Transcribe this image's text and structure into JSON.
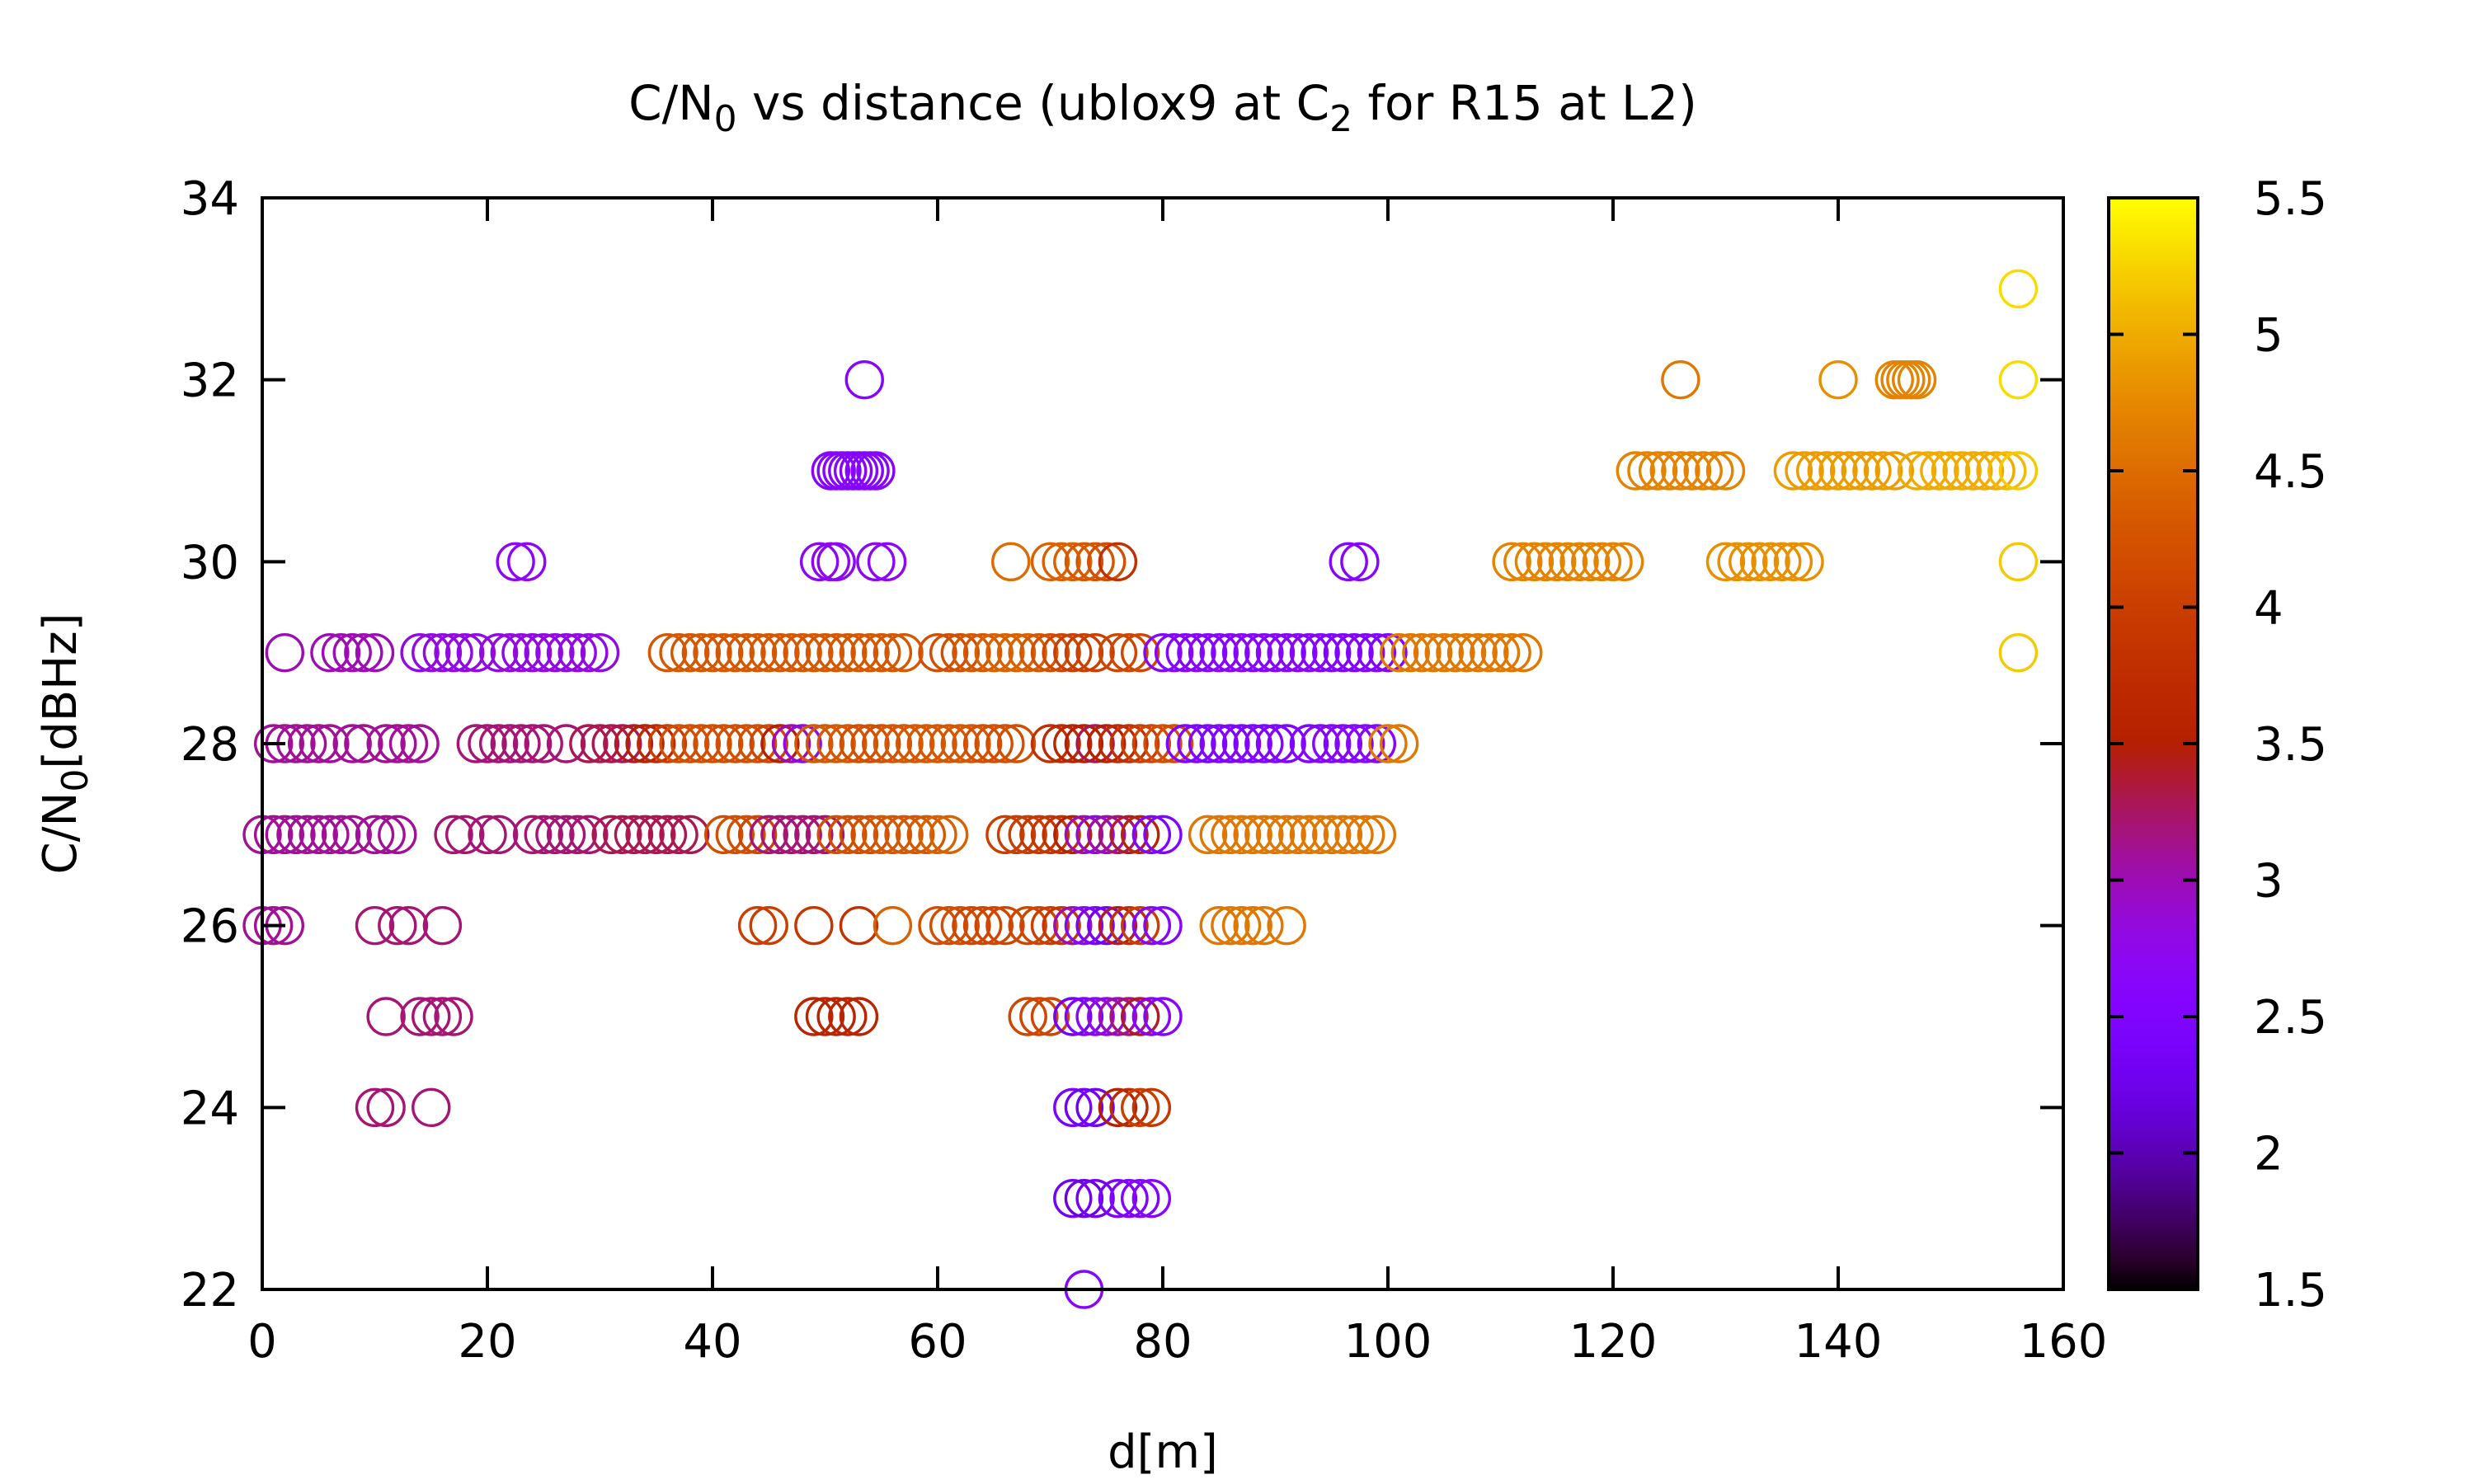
{
  "chart_data": {
    "type": "scatter",
    "title_parts": {
      "a": "C/N",
      "a_sub": "0",
      "b": " vs distance (ublox9 at C",
      "b_sub": "2",
      "c": " for R15 at L2)"
    },
    "xlabel": "d[m]",
    "ylabel_parts": {
      "a": "C/N",
      "a_sub": "0",
      "b": "[dBHz]"
    },
    "xlim": [
      0,
      160
    ],
    "ylim": [
      22,
      34
    ],
    "xticks": [
      "0",
      "20",
      "40",
      "60",
      "80",
      "100",
      "120",
      "140",
      "160"
    ],
    "yticks": [
      "22",
      "24",
      "26",
      "28",
      "30",
      "32",
      "34"
    ],
    "colorbar": {
      "range": [
        1.5,
        5.5
      ],
      "ticks": [
        "1.5",
        "2",
        "2.5",
        "3",
        "3.5",
        "4",
        "4.5",
        "5",
        "5.5"
      ],
      "palette": "gnuplot pm3d default (black-purple-red-orange-yellow)"
    },
    "marker": "open-circle",
    "grid": false,
    "series": [
      {
        "y": 33,
        "x": [
          156
        ],
        "c": [
          5.3
        ]
      },
      {
        "y": 32,
        "x": [
          53.5,
          126,
          140,
          145,
          145.5,
          146,
          146.5,
          147,
          156
        ],
        "c": [
          2.6,
          4.6,
          4.8,
          4.7,
          4.7,
          4.7,
          4.7,
          4.7,
          5.3
        ]
      },
      {
        "y": 31,
        "x": [
          50.5,
          51,
          51.5,
          52,
          52.5,
          53,
          53.5,
          54,
          54.5,
          122,
          123,
          124,
          125,
          126,
          127,
          128,
          129,
          130,
          136,
          137,
          138,
          139,
          140,
          141,
          142,
          143,
          144,
          145,
          147,
          148,
          149,
          150,
          151,
          152,
          153,
          154,
          155,
          156
        ],
        "c": [
          2.6,
          2.6,
          2.6,
          2.6,
          2.6,
          2.6,
          2.6,
          2.6,
          2.6,
          4.7,
          4.7,
          4.7,
          4.7,
          4.7,
          4.7,
          4.7,
          4.7,
          4.7,
          4.9,
          4.9,
          4.9,
          4.9,
          4.9,
          4.9,
          4.9,
          4.9,
          4.9,
          4.9,
          5.0,
          5.0,
          5.0,
          5.0,
          5.0,
          5.0,
          5.0,
          5.0,
          5.1,
          5.2
        ]
      },
      {
        "y": 30,
        "x": [
          22.5,
          23.5,
          49.5,
          50.5,
          51,
          54.5,
          55.5,
          66.5,
          70,
          71,
          72,
          73,
          74,
          75,
          76,
          96.5,
          97.5,
          111,
          112,
          113,
          114,
          115,
          116,
          117,
          118,
          119,
          120,
          121,
          130,
          131,
          132,
          133,
          134,
          135,
          136,
          137,
          156
        ],
        "c": [
          2.7,
          2.7,
          2.7,
          2.7,
          2.7,
          2.7,
          2.7,
          4.5,
          4.4,
          4.4,
          4.4,
          4.3,
          4.3,
          4.2,
          3.8,
          2.6,
          2.6,
          4.7,
          4.7,
          4.7,
          4.7,
          4.7,
          4.7,
          4.7,
          4.7,
          4.7,
          4.7,
          4.7,
          4.8,
          4.8,
          4.8,
          4.8,
          4.8,
          4.8,
          4.8,
          4.8,
          5.2
        ]
      },
      {
        "y": 29,
        "x": [
          2,
          6,
          7,
          8,
          9,
          10,
          14,
          15,
          16,
          17,
          18,
          19,
          21,
          22,
          23,
          24,
          25,
          26,
          27,
          28,
          29,
          30,
          36,
          37,
          38,
          39,
          40,
          41,
          42,
          43,
          44,
          45,
          46,
          47,
          48,
          49,
          50,
          51,
          52,
          53,
          54,
          55,
          56,
          57,
          60,
          61,
          62,
          63,
          64,
          65,
          66,
          67,
          68,
          69,
          70,
          71,
          72,
          73,
          74,
          76,
          77,
          78,
          80,
          81,
          82,
          83,
          84,
          85,
          86,
          87,
          88,
          89,
          90,
          91,
          92,
          93,
          94,
          95,
          96,
          97,
          98,
          99,
          100,
          101,
          102,
          103,
          104,
          105,
          106,
          107,
          108,
          109,
          110,
          111,
          112,
          156
        ],
        "c": [
          3.0,
          3.0,
          3.0,
          3.0,
          3.0,
          3.0,
          2.8,
          2.8,
          2.8,
          2.8,
          2.8,
          2.8,
          2.8,
          2.8,
          2.8,
          2.8,
          2.8,
          2.8,
          2.8,
          2.8,
          2.8,
          2.8,
          4.3,
          4.3,
          4.3,
          4.3,
          4.3,
          4.3,
          4.3,
          4.3,
          4.3,
          4.3,
          4.3,
          4.3,
          4.3,
          4.3,
          4.3,
          4.3,
          4.3,
          4.3,
          4.3,
          4.3,
          4.3,
          4.3,
          4.2,
          4.2,
          4.2,
          4.3,
          4.3,
          4.4,
          4.4,
          4.4,
          4.4,
          4.3,
          4.2,
          4.1,
          4.0,
          4.0,
          4.0,
          4.1,
          4.1,
          4.1,
          2.6,
          2.6,
          2.6,
          2.6,
          2.6,
          2.6,
          2.6,
          2.6,
          2.6,
          2.6,
          2.6,
          2.6,
          2.6,
          2.6,
          2.5,
          2.5,
          2.5,
          2.5,
          2.5,
          2.5,
          2.5,
          4.6,
          4.6,
          4.6,
          4.6,
          4.6,
          4.6,
          4.6,
          4.6,
          4.6,
          4.6,
          4.6,
          4.6,
          5.2
        ]
      },
      {
        "y": 28,
        "x": [
          1,
          2,
          3,
          4,
          5,
          6,
          8,
          9,
          11,
          12,
          13,
          14,
          19,
          20,
          21,
          22,
          23,
          24,
          25,
          27,
          29,
          30,
          31,
          32,
          33,
          34,
          35,
          36,
          37,
          38,
          39,
          40,
          41,
          42,
          43,
          44,
          45,
          46,
          47,
          48,
          49,
          50,
          51,
          52,
          53,
          54,
          55,
          56,
          57,
          58,
          59,
          60,
          61,
          62,
          63,
          64,
          65,
          66,
          67,
          70,
          71,
          72,
          73,
          74,
          75,
          76,
          77,
          78,
          79,
          80,
          81,
          82,
          83,
          84,
          85,
          86,
          87,
          88,
          89,
          90,
          91,
          93,
          94,
          95,
          96,
          97,
          98,
          99,
          100,
          101
        ],
        "c": [
          3.1,
          3.1,
          3.1,
          3.1,
          3.1,
          3.1,
          3.1,
          3.1,
          3.1,
          3.1,
          3.1,
          3.1,
          3.2,
          3.2,
          3.2,
          3.2,
          3.2,
          3.2,
          3.2,
          3.2,
          3.3,
          3.3,
          3.3,
          3.3,
          3.4,
          3.5,
          3.7,
          4.0,
          4.2,
          4.2,
          4.2,
          4.2,
          4.2,
          4.2,
          4.2,
          4.2,
          4.1,
          3.5,
          3.0,
          2.8,
          4.3,
          4.3,
          4.3,
          4.3,
          4.2,
          4.2,
          4.2,
          4.3,
          4.3,
          4.3,
          4.3,
          4.3,
          4.3,
          4.3,
          4.3,
          4.2,
          4.2,
          4.2,
          4.2,
          3.8,
          3.7,
          3.6,
          3.5,
          3.3,
          3.5,
          3.7,
          3.8,
          4.0,
          4.1,
          4.2,
          4.2,
          2.5,
          2.5,
          2.5,
          2.5,
          2.5,
          2.5,
          2.5,
          2.5,
          2.5,
          2.5,
          2.5,
          2.6,
          2.6,
          2.6,
          2.6,
          2.6,
          2.6,
          4.6,
          4.6
        ]
      },
      {
        "y": 27,
        "x": [
          0,
          1,
          2,
          3,
          4,
          5,
          6,
          7,
          8,
          10,
          11,
          12,
          17,
          18,
          20,
          21,
          24,
          25,
          26,
          27,
          28,
          29,
          31,
          32,
          33,
          34,
          35,
          36,
          37,
          38,
          41,
          42,
          43,
          44,
          45,
          46,
          47,
          48,
          49,
          50,
          51,
          52,
          53,
          54,
          55,
          56,
          57,
          58,
          59,
          60,
          61,
          66,
          67,
          68,
          69,
          70,
          71,
          72,
          73,
          74,
          75,
          76,
          77,
          78,
          79,
          80,
          84,
          85,
          86,
          87,
          88,
          89,
          90,
          91,
          92,
          93,
          94,
          95,
          96,
          97,
          98,
          99
        ],
        "c": [
          3.1,
          3.1,
          3.1,
          3.1,
          3.1,
          3.1,
          3.1,
          3.1,
          3.1,
          3.1,
          3.1,
          3.1,
          3.2,
          3.2,
          3.2,
          3.2,
          3.2,
          3.2,
          3.2,
          3.2,
          3.2,
          3.2,
          3.3,
          3.3,
          3.3,
          3.3,
          3.3,
          3.3,
          3.3,
          3.3,
          4.2,
          4.2,
          4.2,
          4.1,
          3.2,
          3.2,
          3.2,
          3.2,
          3.2,
          3.2,
          4.2,
          4.2,
          4.2,
          4.2,
          4.3,
          4.3,
          4.3,
          4.3,
          4.3,
          4.4,
          4.4,
          4.0,
          4.0,
          4.0,
          3.9,
          3.9,
          3.8,
          3.5,
          3.0,
          2.8,
          3.0,
          3.2,
          3.4,
          3.6,
          2.5,
          2.5,
          4.6,
          4.6,
          4.6,
          4.6,
          4.6,
          4.6,
          4.6,
          4.6,
          4.6,
          4.6,
          4.6,
          4.6,
          4.6,
          4.6,
          4.6,
          4.6
        ]
      },
      {
        "y": 26,
        "x": [
          0,
          1,
          2,
          10,
          12,
          13,
          16,
          44,
          45,
          49,
          53,
          56,
          60,
          61,
          62,
          63,
          64,
          65,
          66,
          68,
          69,
          70,
          71,
          72,
          73,
          74,
          75,
          76,
          77,
          78,
          79,
          80,
          85,
          86,
          87,
          88,
          89,
          91
        ],
        "c": [
          3.1,
          3.1,
          3.1,
          3.2,
          3.2,
          3.2,
          3.2,
          4.0,
          4.0,
          3.9,
          3.8,
          4.4,
          4.2,
          4.2,
          4.2,
          4.1,
          4.1,
          4.1,
          4.1,
          4.1,
          4.1,
          4.0,
          3.9,
          3.0,
          2.6,
          2.4,
          2.3,
          3.4,
          3.8,
          4.0,
          2.6,
          2.6,
          4.6,
          4.6,
          4.6,
          4.6,
          4.6,
          4.6
        ]
      },
      {
        "y": 25,
        "x": [
          11,
          14,
          15,
          16,
          17,
          49,
          50,
          51,
          52,
          53,
          68,
          69,
          70,
          72,
          73,
          74,
          75,
          76,
          77,
          78,
          79,
          80
        ],
        "c": [
          3.2,
          3.2,
          3.2,
          3.2,
          3.2,
          3.6,
          3.6,
          3.6,
          3.6,
          3.6,
          4.1,
          4.1,
          4.1,
          2.3,
          2.5,
          2.7,
          2.8,
          3.0,
          3.2,
          3.4,
          2.6,
          2.6
        ]
      },
      {
        "y": 24,
        "x": [
          10,
          11,
          15,
          72,
          73,
          74,
          76,
          77,
          78,
          79
        ],
        "c": [
          3.2,
          3.2,
          3.2,
          2.4,
          2.3,
          2.3,
          3.5,
          3.7,
          4.0,
          3.9
        ]
      },
      {
        "y": 23,
        "x": [
          72,
          73,
          74,
          76,
          77,
          78,
          79
        ],
        "c": [
          2.3,
          2.2,
          2.3,
          2.4,
          2.5,
          2.5,
          2.6
        ]
      },
      {
        "y": 22,
        "x": [
          73
        ],
        "c": [
          2.6
        ]
      }
    ]
  }
}
